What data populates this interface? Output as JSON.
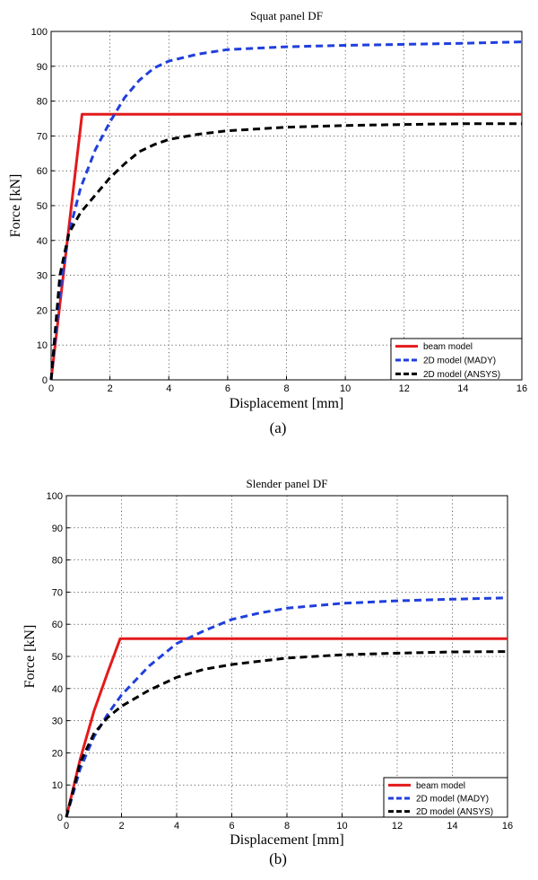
{
  "colors": {
    "beam": "#e31a1c",
    "mady": "#1f3fdc",
    "ansys": "#000000"
  },
  "chart_data": [
    {
      "type": "line",
      "title": "Squat panel DF",
      "xlabel": "Displacement [mm]",
      "ylabel": "Force [kN]",
      "caption": "(a)",
      "xlim": [
        0,
        16
      ],
      "ylim": [
        0,
        100
      ],
      "xticks": [
        0,
        2,
        4,
        6,
        8,
        10,
        12,
        14,
        16
      ],
      "yticks": [
        0,
        10,
        20,
        30,
        40,
        50,
        60,
        70,
        80,
        90,
        100
      ],
      "grid": true,
      "legend_position": "bottom-right",
      "series": [
        {
          "name": "beam model",
          "style": "solid",
          "color": "#e31a1c",
          "x": [
            0,
            1.05,
            16
          ],
          "y": [
            0,
            76.2,
            76.2
          ]
        },
        {
          "name": "2D model (MADY)",
          "style": "dashed",
          "color": "#1f3fdc",
          "x": [
            0,
            0.3,
            0.6,
            1.0,
            1.5,
            2.0,
            2.5,
            3.0,
            3.5,
            4.0,
            5.0,
            6.0,
            8.0,
            10.0,
            12.0,
            14.0,
            16.0
          ],
          "y": [
            0,
            25,
            42,
            55,
            66,
            74,
            81,
            86,
            89.5,
            91.5,
            93.5,
            94.8,
            95.6,
            96.0,
            96.3,
            96.6,
            97.0
          ]
        },
        {
          "name": "2D model (ANSYS)",
          "style": "dashed",
          "color": "#000000",
          "x": [
            0,
            0.3,
            0.6,
            1.0,
            1.5,
            2.0,
            2.5,
            3.0,
            3.5,
            4.0,
            5.0,
            6.0,
            8.0,
            10.0,
            12.0,
            14.0,
            16.0
          ],
          "y": [
            0,
            30,
            42,
            48,
            53,
            58,
            62,
            65.5,
            67.5,
            69,
            70.5,
            71.5,
            72.5,
            73.0,
            73.3,
            73.5,
            73.5
          ]
        }
      ]
    },
    {
      "type": "line",
      "title": "Slender panel DF",
      "xlabel": "Displacement [mm]",
      "ylabel": "Force [kN]",
      "caption": "(b)",
      "xlim": [
        0,
        16
      ],
      "ylim": [
        0,
        100
      ],
      "xticks": [
        0,
        2,
        4,
        6,
        8,
        10,
        12,
        14,
        16
      ],
      "yticks": [
        0,
        10,
        20,
        30,
        40,
        50,
        60,
        70,
        80,
        90,
        100
      ],
      "grid": true,
      "legend_position": "bottom-right",
      "series": [
        {
          "name": "beam model",
          "style": "solid",
          "color": "#e31a1c",
          "x": [
            0,
            0.5,
            1.0,
            1.5,
            1.95,
            16
          ],
          "y": [
            0,
            18,
            33,
            45,
            55.5,
            55.5
          ]
        },
        {
          "name": "2D model (MADY)",
          "style": "dashed",
          "color": "#1f3fdc",
          "x": [
            0,
            0.5,
            1.0,
            1.5,
            2.0,
            3.0,
            4.0,
            5.0,
            6.0,
            7.0,
            8.0,
            10.0,
            12.0,
            14.0,
            16.0
          ],
          "y": [
            0,
            15,
            25,
            32,
            38,
            47,
            54,
            58,
            61.5,
            63.5,
            65,
            66.5,
            67.3,
            67.8,
            68.2
          ]
        },
        {
          "name": "2D model (ANSYS)",
          "style": "dashed",
          "color": "#000000",
          "x": [
            0,
            0.5,
            1.0,
            1.5,
            2.0,
            3.0,
            4.0,
            5.0,
            6.0,
            8.0,
            10.0,
            12.0,
            14.0,
            16.0
          ],
          "y": [
            0,
            17,
            26,
            31,
            34.5,
            39.5,
            43.5,
            46,
            47.5,
            49.5,
            50.5,
            51,
            51.4,
            51.5
          ]
        }
      ]
    }
  ]
}
